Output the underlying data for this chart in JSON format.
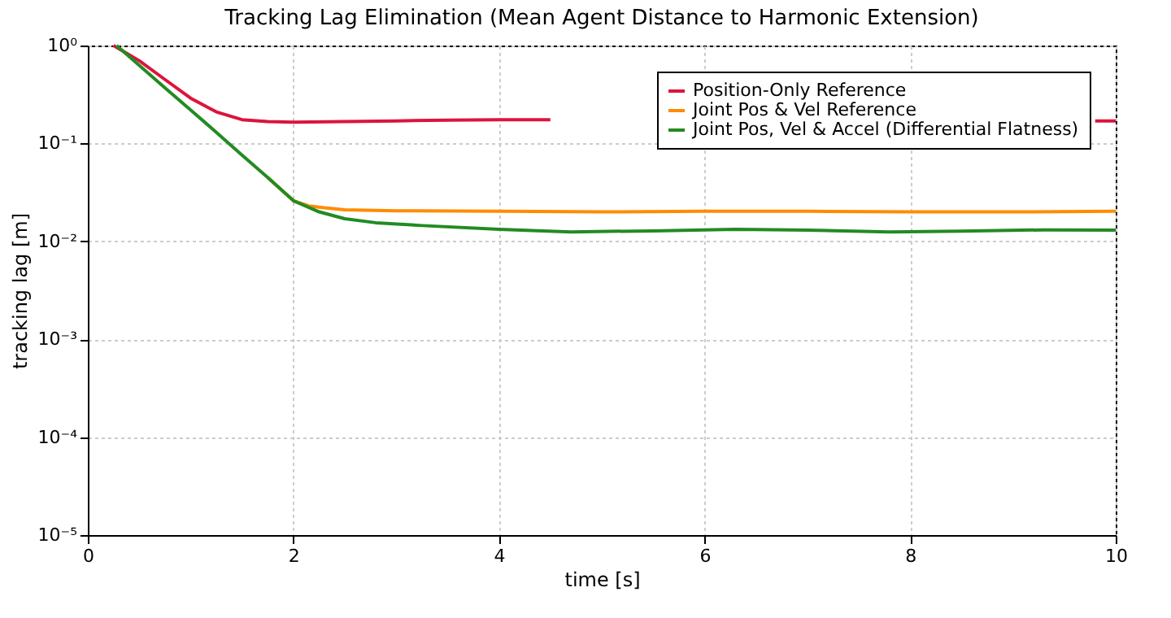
{
  "chart_data": {
    "type": "line",
    "title": "Tracking Lag Elimination (Mean Agent Distance to Harmonic Extension)",
    "xlabel": "time [s]",
    "ylabel": "tracking lag [m]",
    "xlim": [
      0,
      10
    ],
    "xticks": [
      0,
      2,
      4,
      6,
      8,
      10
    ],
    "ylim": [
      1e-05,
      1
    ],
    "yticks": [
      {
        "value": 1e-05,
        "label": "10⁻⁵"
      },
      {
        "value": 0.0001,
        "label": "10⁻⁴"
      },
      {
        "value": 0.001,
        "label": "10⁻³"
      },
      {
        "value": 0.01,
        "label": "10⁻²"
      },
      {
        "value": 0.1,
        "label": "10⁻¹"
      },
      {
        "value": 1,
        "label": "10⁰"
      }
    ],
    "log": "y",
    "grid": true,
    "legend": "top right",
    "line_style": "solid",
    "marker": "none",
    "series": [
      {
        "name": "Position-Only Reference",
        "color": "#dc143c",
        "x": [
          0.25,
          0.5,
          0.75,
          1.0,
          1.25,
          1.5,
          1.75,
          2.0,
          2.5,
          3.0,
          3.5,
          4.0,
          4.5,
          5.0,
          6.0,
          7.0,
          8.0,
          9.0,
          9.8,
          10.0
        ],
        "values": [
          1,
          0.7,
          0.45,
          0.29,
          0.21,
          0.175,
          0.167,
          0.165,
          0.167,
          0.17,
          0.173,
          0.175,
          0.175,
          null,
          null,
          null,
          null,
          null,
          0.17,
          0.17
        ]
      },
      {
        "name": "Joint Pos & Vel Reference",
        "color": "#ff8c00",
        "x": [
          1.75,
          2.0,
          2.15,
          2.3,
          2.5,
          3.0,
          4.0,
          5.0,
          6.0,
          7.0,
          8.0,
          9.0,
          10.0
        ],
        "values": [
          0.045,
          0.026,
          0.023,
          0.022,
          0.021,
          0.0205,
          0.0203,
          0.02,
          0.0203,
          0.0203,
          0.02,
          0.02,
          0.0203
        ]
      },
      {
        "name": "Joint Pos, Vel & Accel (Differential Flatness)",
        "color": "#228b22",
        "x": [
          0.28,
          0.75,
          1.0,
          1.25,
          1.5,
          1.75,
          2.0,
          2.25,
          2.5,
          2.8,
          3.25,
          4.0,
          4.7,
          5.5,
          6.3,
          7.0,
          7.8,
          8.5,
          9.3,
          10.0
        ],
        "values": [
          1,
          0.37,
          0.22,
          0.13,
          0.076,
          0.045,
          0.026,
          0.02,
          0.017,
          0.0155,
          0.0145,
          0.0133,
          0.0125,
          0.0128,
          0.0133,
          0.013,
          0.0125,
          0.0127,
          0.0131,
          0.013
        ]
      }
    ]
  }
}
